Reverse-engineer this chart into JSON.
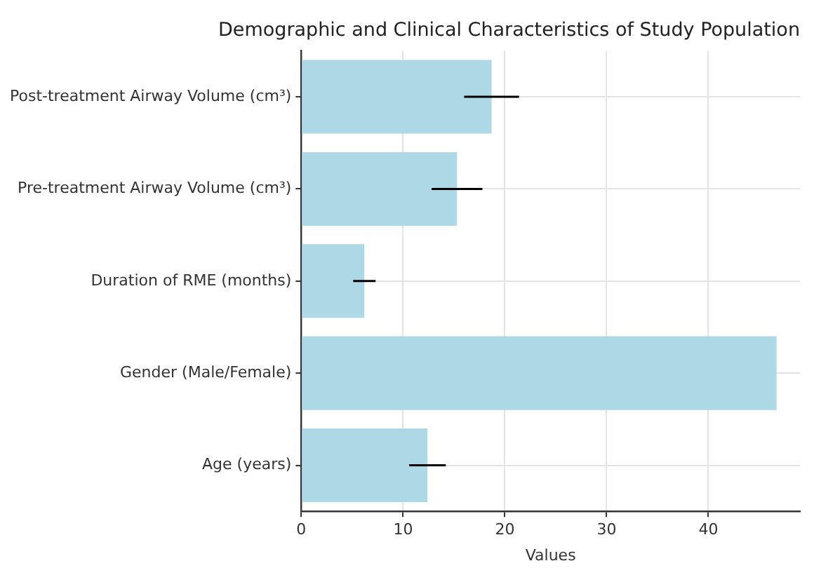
{
  "chart_data": {
    "type": "bar",
    "orientation": "horizontal",
    "title": "Demographic and Clinical Characteristics of Study Population",
    "xlabel": "Values",
    "categories": [
      "Post-treatment Airway Volume (cm³)",
      "Pre-treatment Airway Volume (cm³)",
      "Duration of RME (months)",
      "Gender (Male/Female)",
      "Age (years)"
    ],
    "values": [
      18.7,
      15.3,
      6.2,
      46.7,
      12.4
    ],
    "errors": [
      2.7,
      2.5,
      1.1,
      null,
      1.8
    ],
    "color": "#add8e6",
    "xlim": [
      0,
      49
    ],
    "xticks": [
      0,
      10,
      20,
      30,
      40
    ],
    "grid": true,
    "legend": false
  }
}
